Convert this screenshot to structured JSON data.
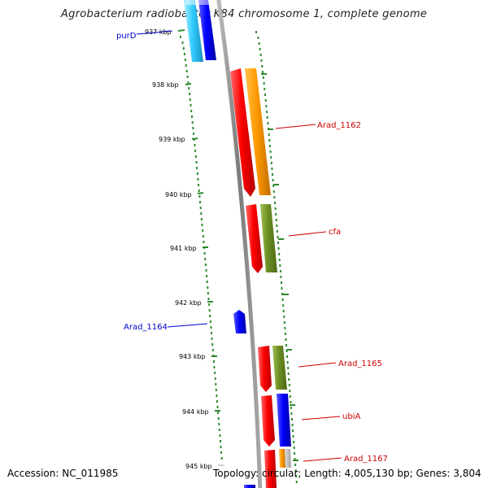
{
  "title": "Agrobacterium radiobacter K84 chromosome 1, complete genome",
  "footer": {
    "accession": "Accession: NC_011985",
    "topology": "Topology: circular; Length: 4,005,130 bp; Genes: 3,804"
  },
  "kbp_ticks": [
    "937 kbp",
    "938 kbp",
    "939 kbp",
    "940 kbp",
    "941 kbp",
    "942 kbp",
    "943 kbp",
    "944 kbp",
    "945 kbp"
  ],
  "gene_labels": [
    {
      "name": "purD",
      "color": "#0000cc"
    },
    {
      "name": "Arad_1162",
      "color": "#cc0000"
    },
    {
      "name": "cfa",
      "color": "#cc0000"
    },
    {
      "name": "Arad_1164",
      "color": "#0000cc"
    },
    {
      "name": "Arad_1165",
      "color": "#cc0000"
    },
    {
      "name": "ubiA",
      "color": "#cc0000"
    },
    {
      "name": "Arad_1167",
      "color": "#cc0000"
    }
  ],
  "colors": {
    "backbone": "#8c8c8c",
    "tick_green": "#2e8b2e",
    "feature_red": "#ff0000",
    "feature_orange": "#ff9900",
    "feature_olive": "#6b8e23",
    "feature_blue": "#0000ff",
    "feature_cyan": "#33ccff"
  }
}
